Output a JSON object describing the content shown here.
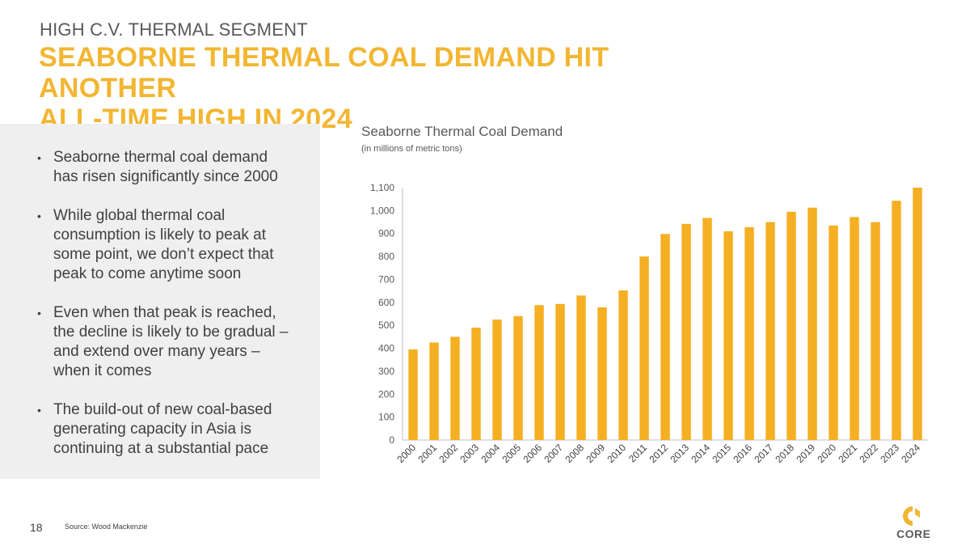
{
  "header": {
    "kicker": "HIGH C.V. THERMAL SEGMENT",
    "headline_line1": "SEABORNE THERMAL COAL DEMAND HIT ANOTHER",
    "headline_line2": "ALL-TIME HIGH IN 2024"
  },
  "bullets": [
    "Seaborne thermal coal demand has risen significantly since 2000",
    "While global thermal coal consumption is likely to peak at some point, we don’t expect that peak to come anytime soon",
    "Even when that peak is reached, the decline is likely to be gradual – and extend over many years – when it comes",
    "The build-out of new coal-based generating capacity in Asia is continuing at a substantial pace"
  ],
  "bullet_glyph": "•",
  "footer": {
    "page_number": "18",
    "source": "Source: Wood Mackenzie",
    "logo_text": "CORE"
  },
  "colors": {
    "accent": "#F2B632",
    "bar": "#F5AF22",
    "panel": "#EFEFEF",
    "text": "#404040"
  },
  "chart_data": {
    "type": "bar",
    "title": "Seaborne Thermal Coal Demand",
    "subtitle": "(in millions of metric tons)",
    "xlabel": "",
    "ylabel": "",
    "categories": [
      "2000",
      "2001",
      "2002",
      "2003",
      "2004",
      "2005",
      "2006",
      "2007",
      "2008",
      "2009",
      "2010",
      "2011",
      "2012",
      "2013",
      "2014",
      "2015",
      "2016",
      "2017",
      "2018",
      "2019",
      "2020",
      "2021",
      "2022",
      "2023",
      "2024"
    ],
    "values": [
      395,
      425,
      450,
      490,
      525,
      540,
      588,
      593,
      630,
      578,
      652,
      800,
      898,
      942,
      968,
      910,
      928,
      950,
      995,
      1013,
      935,
      972,
      950,
      1043,
      1100
    ],
    "ylim": [
      0,
      1100
    ],
    "yticks": [
      0,
      100,
      200,
      300,
      400,
      500,
      600,
      700,
      800,
      900,
      1000,
      1100
    ],
    "ytick_labels": [
      "0",
      "100",
      "200",
      "300",
      "400",
      "500",
      "600",
      "700",
      "800",
      "900",
      "1,000",
      "1,100"
    ],
    "grid": false,
    "legend": "none"
  }
}
